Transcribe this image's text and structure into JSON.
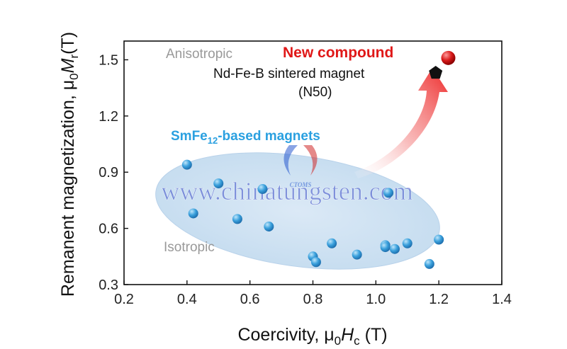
{
  "chart_data": {
    "type": "scatter",
    "xlabel": {
      "prefix": "Coercivity, μ",
      "sub": "0",
      "var": "H",
      "var_sub": "c",
      "unit": " (T)"
    },
    "ylabel": {
      "prefix": "Remanent magnetization, μ",
      "sub": "0",
      "var": "M",
      "var_sub": "r",
      "unit": "(T)"
    },
    "xlim": [
      0.2,
      1.4
    ],
    "ylim": [
      0.3,
      1.6
    ],
    "x_ticks": [
      "0.2",
      "0.4",
      "0.6",
      "0.8",
      "1.0",
      "1.2",
      "1.4"
    ],
    "y_ticks": [
      "0.3",
      "0.6",
      "0.9",
      "1.2",
      "1.5"
    ],
    "grid": false,
    "series": [
      {
        "name": "SmFe12-based magnets",
        "color": "#3aa0dc",
        "points": [
          {
            "x": 0.4,
            "y": 0.94
          },
          {
            "x": 0.42,
            "y": 0.68
          },
          {
            "x": 0.5,
            "y": 0.84
          },
          {
            "x": 0.56,
            "y": 0.65
          },
          {
            "x": 0.64,
            "y": 0.81
          },
          {
            "x": 0.66,
            "y": 0.61
          },
          {
            "x": 0.8,
            "y": 0.45
          },
          {
            "x": 0.81,
            "y": 0.42
          },
          {
            "x": 0.86,
            "y": 0.52
          },
          {
            "x": 0.94,
            "y": 0.46
          },
          {
            "x": 1.03,
            "y": 0.51
          },
          {
            "x": 1.04,
            "y": 0.79
          },
          {
            "x": 1.03,
            "y": 0.5
          },
          {
            "x": 1.06,
            "y": 0.49
          },
          {
            "x": 1.1,
            "y": 0.52
          },
          {
            "x": 1.17,
            "y": 0.41
          },
          {
            "x": 1.2,
            "y": 0.54
          }
        ]
      },
      {
        "name": "New compound",
        "color": "#cc1010",
        "points": [
          {
            "x": 1.23,
            "y": 1.51
          }
        ]
      },
      {
        "name": "Nd-Fe-B sintered magnet (N50)",
        "color": "#111111",
        "marker": "pentagon",
        "points": [
          {
            "x": 1.19,
            "y": 1.43
          }
        ]
      }
    ],
    "annotations": {
      "anisotropic": "Anisotropic",
      "isotropic": "Isotropic",
      "new_compound": "New compound",
      "ndfeb_line1": "Nd-Fe-B sintered magnet",
      "ndfeb_line2": "(N50)",
      "smfe_prefix": "SmFe",
      "smfe_sub": "12",
      "smfe_suffix": "-based magnets"
    },
    "watermark": {
      "url": "www.chinatungsten.com",
      "logo_text": "CTOMS"
    },
    "colors": {
      "ellipse_fill": "#cfe3f4",
      "arrow": "#ee3333",
      "anisotropic_text": "#999999",
      "smfe_label": "#2aa0e0"
    }
  }
}
